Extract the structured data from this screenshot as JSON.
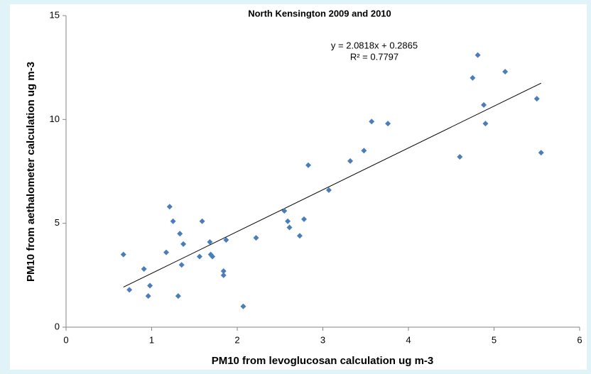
{
  "chart_data": {
    "type": "scatter",
    "title": "North Kensington 2009 and 2010",
    "xlabel": "PM10 from levoglucosan calculation ug m-3",
    "ylabel": "PM10 from aethalometer calculation ug m-3",
    "trendline": {
      "equation": "y = 2.0818x + 0.2865",
      "r2": "R² = 0.7797",
      "color": "#000000"
    },
    "color": "#4a7ebb",
    "x": [
      0.67,
      0.74,
      0.91,
      0.96,
      0.98,
      1.17,
      1.21,
      1.25,
      1.31,
      1.33,
      1.35,
      1.37,
      1.56,
      1.59,
      1.68,
      1.69,
      1.71,
      1.84,
      1.84,
      1.87,
      2.07,
      2.22,
      2.55,
      2.59,
      2.61,
      2.73,
      2.78,
      2.83,
      3.07,
      3.32,
      3.48,
      3.57,
      3.76,
      4.6,
      4.75,
      4.81,
      4.88,
      4.9,
      5.13,
      5.5,
      5.55
    ],
    "values": [
      3.5,
      1.8,
      2.8,
      1.5,
      2.0,
      3.6,
      5.8,
      5.1,
      1.5,
      4.5,
      3.0,
      4.0,
      3.4,
      5.1,
      4.1,
      3.5,
      3.4,
      2.7,
      2.5,
      4.2,
      1.0,
      4.3,
      5.6,
      5.1,
      4.8,
      4.4,
      5.2,
      7.8,
      6.6,
      8.0,
      8.5,
      9.9,
      9.8,
      8.2,
      12.0,
      13.1,
      10.7,
      9.8,
      12.3,
      11.0,
      8.4
    ],
    "xlim": [
      0,
      6
    ],
    "xticks": [
      0,
      1,
      2,
      3,
      4,
      5,
      6
    ],
    "ylim": [
      0,
      15
    ],
    "yticks": [
      0,
      5,
      10,
      15
    ],
    "grid": false
  }
}
